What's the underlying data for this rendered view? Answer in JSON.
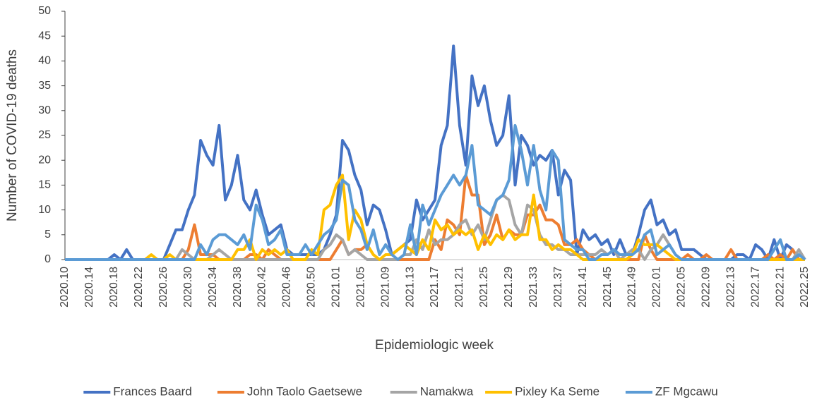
{
  "chart_data": {
    "type": "line",
    "x_label": "Epidemiologic week",
    "y_label": "Number of COVID-19 deaths",
    "categories": [
      "2020.10",
      null,
      null,
      null,
      "2020.14",
      null,
      null,
      null,
      "2020.18",
      null,
      null,
      null,
      "2020.22",
      null,
      null,
      null,
      "2020.26",
      null,
      null,
      null,
      "2020.30",
      null,
      null,
      null,
      "2020.34",
      null,
      null,
      null,
      "2020.38",
      null,
      null,
      null,
      "2020.42",
      null,
      null,
      null,
      "2020.46",
      null,
      null,
      null,
      "2020.50",
      null,
      null,
      null,
      "2021.01",
      null,
      null,
      null,
      "2021.05",
      null,
      null,
      null,
      "2021.09",
      null,
      null,
      null,
      "2021.13",
      null,
      null,
      null,
      "2021.17",
      null,
      null,
      null,
      "2021.21",
      null,
      null,
      null,
      "2021.25",
      null,
      null,
      null,
      "2021.29",
      null,
      null,
      null,
      "2021.33",
      null,
      null,
      null,
      "2021.37",
      null,
      null,
      null,
      "2021.41",
      null,
      null,
      null,
      "2021.45",
      null,
      null,
      null,
      "2021.49",
      null,
      null,
      null,
      "2022.01",
      null,
      null,
      null,
      "2022.05",
      null,
      null,
      null,
      "2022.09",
      null,
      null,
      null,
      "2022.13",
      null,
      null,
      null,
      "2022.17",
      null,
      null,
      null,
      "2022.21",
      null,
      null,
      null,
      "2022.25"
    ],
    "ylim": [
      0,
      50
    ],
    "yticks": [
      0,
      5,
      10,
      15,
      20,
      25,
      30,
      35,
      40,
      45,
      50
    ],
    "legend": "bottom",
    "series": [
      {
        "name": "Frances Baard",
        "color": "#4472c4",
        "values": [
          0,
          0,
          0,
          0,
          0,
          0,
          0,
          0,
          1,
          0,
          2,
          0,
          0,
          0,
          0,
          0,
          0,
          3,
          6,
          6,
          10,
          13,
          24,
          21,
          19,
          27,
          12,
          15,
          21,
          12,
          10,
          14,
          9,
          5,
          6,
          7,
          2,
          1,
          1,
          1,
          1,
          1,
          2,
          5,
          9,
          24,
          22,
          17,
          14,
          7,
          11,
          10,
          6,
          1,
          2,
          3,
          4,
          12,
          8,
          10,
          12,
          23,
          27,
          43,
          27,
          19,
          37,
          31,
          35,
          28,
          23,
          25,
          33,
          15,
          25,
          23,
          19,
          21,
          20,
          22,
          13,
          18,
          16,
          1,
          6,
          4,
          5,
          3,
          4,
          1,
          4,
          1,
          1,
          5,
          10,
          12,
          7,
          8,
          5,
          6,
          2,
          2,
          2,
          1,
          0,
          0,
          0,
          0,
          0,
          1,
          1,
          0,
          3,
          2,
          0,
          4,
          0,
          3,
          2,
          0,
          0
        ]
      },
      {
        "name": "John Taolo Gaetsewe",
        "color": "#ed7d31",
        "values": [
          0,
          0,
          0,
          0,
          0,
          0,
          0,
          0,
          0,
          0,
          0,
          0,
          0,
          0,
          0,
          0,
          0,
          0,
          0,
          0,
          2,
          7,
          1,
          1,
          1,
          0,
          0,
          0,
          0,
          0,
          1,
          1,
          0,
          2,
          1,
          0,
          0,
          0,
          0,
          0,
          0,
          0,
          0,
          0,
          2,
          4,
          1,
          2,
          2,
          3,
          1,
          0,
          0,
          0,
          0,
          0,
          0,
          0,
          0,
          0,
          4,
          2,
          8,
          7,
          5,
          17,
          13,
          13,
          3,
          5,
          9,
          4,
          6,
          5,
          5,
          9,
          9,
          11,
          8,
          8,
          7,
          3,
          3,
          4,
          2,
          1,
          0,
          0,
          0,
          0,
          0,
          0,
          0,
          0,
          5,
          2,
          0,
          0,
          0,
          0,
          0,
          1,
          0,
          0,
          1,
          0,
          0,
          0,
          2,
          0,
          0,
          0,
          0,
          0,
          1,
          0,
          1,
          0,
          2,
          0,
          0
        ]
      },
      {
        "name": "Namakwa",
        "color": "#a5a5a5",
        "values": [
          0,
          0,
          0,
          0,
          0,
          0,
          0,
          0,
          0,
          0,
          0,
          0,
          0,
          0,
          0,
          0,
          0,
          0,
          0,
          2,
          1,
          0,
          0,
          0,
          1,
          2,
          1,
          0,
          0,
          0,
          0,
          0,
          0,
          0,
          0,
          0,
          0,
          0,
          0,
          0,
          0,
          0,
          2,
          3,
          5,
          4,
          1,
          2,
          1,
          0,
          0,
          0,
          0,
          0,
          0,
          1,
          1,
          4,
          2,
          6,
          3,
          4,
          4,
          5,
          7,
          8,
          5,
          7,
          4,
          8,
          12,
          13,
          12,
          7,
          5,
          11,
          10,
          5,
          3,
          3,
          2,
          2,
          1,
          1,
          1,
          1,
          1,
          2,
          1,
          2,
          0,
          1,
          2,
          2,
          0,
          2,
          3,
          5,
          3,
          1,
          0,
          0,
          0,
          0,
          0,
          0,
          0,
          0,
          0,
          0,
          0,
          0,
          0,
          0,
          0,
          0,
          0,
          0,
          0,
          2,
          0
        ]
      },
      {
        "name": "Pixley Ka Seme",
        "color": "#ffc000",
        "values": [
          0,
          0,
          0,
          0,
          0,
          0,
          0,
          0,
          0,
          0,
          0,
          0,
          0,
          0,
          1,
          0,
          0,
          1,
          0,
          0,
          0,
          0,
          0,
          0,
          0,
          0,
          0,
          0,
          2,
          2,
          4,
          0,
          2,
          1,
          2,
          1,
          2,
          0,
          0,
          0,
          2,
          1,
          10,
          11,
          15,
          17,
          4,
          10,
          8,
          3,
          1,
          0,
          1,
          1,
          2,
          3,
          2,
          1,
          4,
          2,
          8,
          6,
          7,
          5,
          6,
          5,
          6,
          2,
          5,
          3,
          5,
          4,
          6,
          4,
          5,
          5,
          13,
          4,
          4,
          2,
          3,
          2,
          2,
          1,
          0,
          0,
          0,
          0,
          0,
          0,
          0,
          0,
          1,
          4,
          3,
          3,
          3,
          2,
          1,
          0,
          0,
          0,
          0,
          0,
          0,
          0,
          0,
          0,
          0,
          0,
          0,
          0,
          0,
          0,
          0,
          0,
          0,
          0,
          0,
          0,
          0
        ]
      },
      {
        "name": "ZF Mgcawu",
        "color": "#5b9bd5",
        "values": [
          0,
          0,
          0,
          0,
          0,
          0,
          0,
          0,
          0,
          0,
          0,
          0,
          0,
          0,
          0,
          0,
          0,
          0,
          0,
          0,
          0,
          0,
          3,
          1,
          4,
          5,
          5,
          4,
          3,
          5,
          2,
          11,
          8,
          3,
          4,
          6,
          1,
          1,
          1,
          3,
          1,
          3,
          5,
          6,
          8,
          16,
          15,
          8,
          6,
          2,
          6,
          1,
          3,
          1,
          0,
          1,
          7,
          1,
          11,
          7,
          10,
          13,
          15,
          17,
          15,
          17,
          23,
          11,
          10,
          9,
          12,
          13,
          16,
          27,
          22,
          15,
          23,
          14,
          10,
          22,
          20,
          4,
          3,
          2,
          2,
          0,
          0,
          1,
          1,
          2,
          1,
          1,
          1,
          2,
          5,
          6,
          1,
          2,
          3,
          1,
          0,
          0,
          0,
          0,
          0,
          0,
          0,
          0,
          0,
          0,
          0,
          0,
          0,
          0,
          0,
          2,
          4,
          0,
          0,
          1,
          0
        ]
      }
    ]
  }
}
